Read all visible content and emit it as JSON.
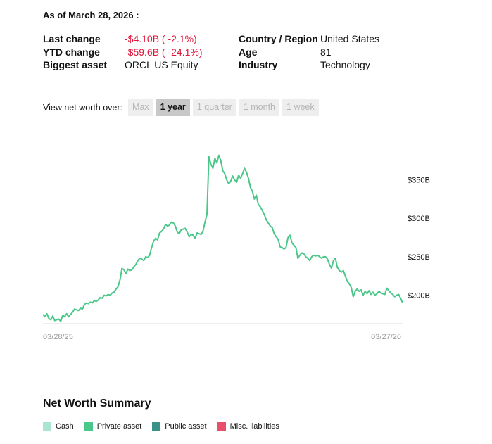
{
  "as_of": "As of March 28, 2026 :",
  "stats_left": [
    {
      "label": "Last change",
      "value": "-$4.10B ( -2.1%)",
      "negative": true
    },
    {
      "label": "YTD change",
      "value": "-$59.6B ( -24.1%)",
      "negative": true
    },
    {
      "label": "Biggest asset",
      "value": "ORCL US Equity",
      "negative": false
    }
  ],
  "stats_right": [
    {
      "label": "Country / Region",
      "value": "United States"
    },
    {
      "label": "Age",
      "value": "81"
    },
    {
      "label": "Industry",
      "value": "Technology"
    }
  ],
  "period_selector": {
    "label": "View net worth over:",
    "options": [
      "Max",
      "1 year",
      "1 quarter",
      "1 month",
      "1 week"
    ],
    "selected": "1 year"
  },
  "chart_data": {
    "type": "line",
    "line_color": "#4cc78a",
    "ylim": [
      163,
      410
    ],
    "y_ticks": [
      200,
      250,
      300,
      350
    ],
    "y_tick_labels": [
      "$200B",
      "$250B",
      "$300B",
      "$350B"
    ],
    "x_tick_labels": [
      "03/28/25",
      "03/27/26"
    ],
    "series": [
      {
        "values": [
          175,
          172,
          176,
          170,
          168,
          173,
          167,
          168,
          169,
          166,
          174,
          172,
          176,
          172,
          175,
          178,
          182,
          181,
          180,
          183,
          182,
          188,
          190,
          189,
          191,
          190,
          193,
          192,
          194,
          197,
          196,
          200,
          199,
          201,
          200,
          203,
          204,
          208,
          211,
          220,
          235,
          233,
          228,
          234,
          232,
          233,
          237,
          240,
          245,
          248,
          247,
          245,
          250,
          249,
          252,
          262,
          270,
          274,
          272,
          281,
          283,
          286,
          292,
          290,
          291,
          295,
          294,
          290,
          282,
          280,
          285,
          286,
          287,
          282,
          276,
          279,
          278,
          274,
          281,
          280,
          279,
          283,
          295,
          305,
          380,
          370,
          365,
          378,
          372,
          382,
          375,
          362,
          358,
          350,
          345,
          348,
          355,
          350,
          347,
          356,
          352,
          358,
          365,
          360,
          352,
          340,
          335,
          325,
          330,
          318,
          315,
          310,
          305,
          298,
          294,
          290,
          288,
          280,
          276,
          273,
          263,
          262,
          260,
          262,
          275,
          278,
          268,
          265,
          262,
          248,
          252,
          255,
          254,
          250,
          248,
          245,
          250,
          252,
          251,
          252,
          250,
          248,
          250,
          250,
          247,
          240,
          235,
          245,
          248,
          236,
          232,
          230,
          232,
          225,
          218,
          215,
          210,
          198,
          205,
          208,
          205,
          207,
          200,
          205,
          202,
          206,
          201,
          204,
          200,
          202,
          205,
          203,
          202,
          201,
          209,
          206,
          203,
          201,
          198,
          200,
          201,
          196,
          190
        ]
      }
    ]
  },
  "summary": {
    "title": "Net Worth Summary",
    "legend": [
      {
        "label": "Cash",
        "color": "#a8e6cf"
      },
      {
        "label": "Private asset",
        "color": "#4cc78a"
      },
      {
        "label": "Public asset",
        "color": "#3a9186"
      },
      {
        "label": "Misc. liabilities",
        "color": "#e94e6b"
      }
    ]
  }
}
